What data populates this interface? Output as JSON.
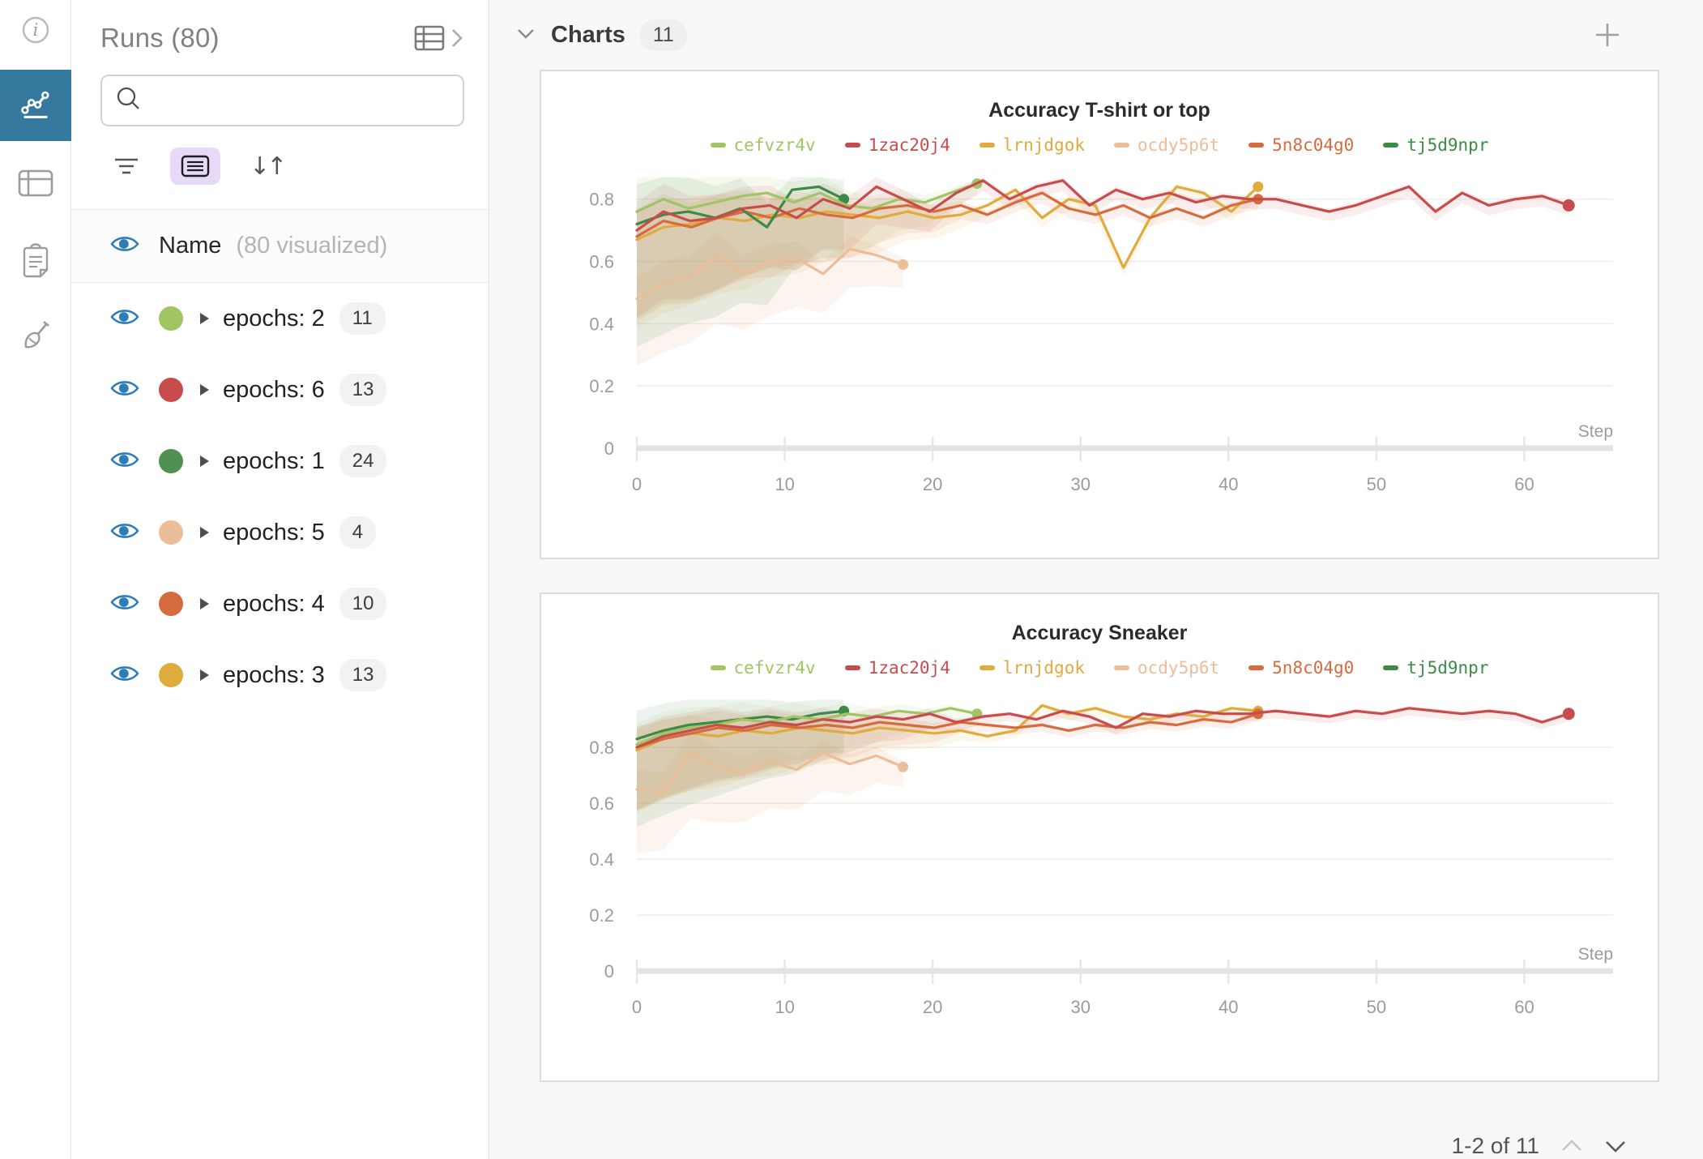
{
  "nav_rail": {
    "items": [
      {
        "name": "info",
        "active": false
      },
      {
        "name": "charts",
        "active": true
      },
      {
        "name": "table",
        "active": false
      },
      {
        "name": "notes",
        "active": false
      },
      {
        "name": "sweep",
        "active": false
      }
    ]
  },
  "runs_panel": {
    "title": "Runs (80)",
    "search": {
      "placeholder": "",
      "value": ""
    },
    "name_row": {
      "label": "Name",
      "sublabel": "(80 visualized)"
    },
    "rows": [
      {
        "label": "epochs: 2",
        "count": "11",
        "color": "#a0c562"
      },
      {
        "label": "epochs: 6",
        "count": "13",
        "color": "#c94c4c"
      },
      {
        "label": "epochs: 1",
        "count": "24",
        "color": "#4f9153"
      },
      {
        "label": "epochs: 5",
        "count": "4",
        "color": "#ecbd99"
      },
      {
        "label": "epochs: 4",
        "count": "10",
        "color": "#d56b3e"
      },
      {
        "label": "epochs: 3",
        "count": "13",
        "color": "#dfab3c"
      }
    ]
  },
  "charts_header": {
    "title": "Charts",
    "badge": "11"
  },
  "pagination": {
    "label": "1-2 of 11"
  },
  "chart_data": [
    {
      "type": "line",
      "title": "Accuracy T-shirt or top",
      "xlabel": "Step",
      "ylabel": "",
      "xlim": [
        0,
        66
      ],
      "ylim": [
        0,
        0.88
      ],
      "xticks": [
        0,
        10,
        20,
        30,
        40,
        50,
        60
      ],
      "yticks": [
        0,
        0.2,
        0.4,
        0.6,
        0.8
      ],
      "grid": true,
      "legend_position": "top",
      "series": [
        {
          "name": "cefvzr4v",
          "color": "#a0c562",
          "band": 0.45,
          "x": [
            0,
            1.8,
            3.5,
            5.3,
            7.1,
            8.8,
            10.6,
            12.4,
            14.2,
            15.9,
            17.7,
            19.5,
            21.2,
            23
          ],
          "y": [
            0.76,
            0.8,
            0.77,
            0.79,
            0.81,
            0.82,
            0.79,
            0.82,
            0.78,
            0.77,
            0.8,
            0.79,
            0.82,
            0.85
          ]
        },
        {
          "name": "1zac20j4",
          "color": "#c94c4c",
          "band": 0.4,
          "x": [
            0,
            1.8,
            3.6,
            5.4,
            7.2,
            9,
            10.8,
            12.6,
            14.4,
            16.2,
            18,
            19.8,
            21.6,
            23.4,
            25.2,
            27,
            28.8,
            30.6,
            32.4,
            34.2,
            36,
            37.8,
            39.6,
            41.4,
            43.2,
            45,
            46.8,
            48.6,
            50.4,
            52.2,
            54,
            55.8,
            57.6,
            59.4,
            61.2,
            63
          ],
          "y": [
            0.7,
            0.76,
            0.73,
            0.74,
            0.77,
            0.78,
            0.74,
            0.8,
            0.77,
            0.84,
            0.8,
            0.76,
            0.82,
            0.86,
            0.8,
            0.84,
            0.86,
            0.78,
            0.83,
            0.8,
            0.82,
            0.79,
            0.81,
            0.8,
            0.8,
            0.78,
            0.76,
            0.78,
            0.81,
            0.84,
            0.76,
            0.82,
            0.78,
            0.8,
            0.81,
            0.78
          ]
        },
        {
          "name": "lrnjdgok",
          "color": "#dfab3c",
          "band": 0.42,
          "x": [
            0,
            1.8,
            3.7,
            5.5,
            7.3,
            9.1,
            11,
            12.8,
            14.6,
            16.4,
            18.3,
            20.1,
            21.9,
            23.7,
            25.6,
            27.4,
            29.2,
            31,
            32.9,
            34.7,
            36.5,
            38.3,
            40.2,
            42
          ],
          "y": [
            0.67,
            0.71,
            0.72,
            0.74,
            0.73,
            0.75,
            0.74,
            0.76,
            0.75,
            0.74,
            0.76,
            0.74,
            0.75,
            0.78,
            0.83,
            0.74,
            0.8,
            0.78,
            0.58,
            0.74,
            0.84,
            0.82,
            0.76,
            0.84
          ]
        },
        {
          "name": "ocdy5p6t",
          "color": "#ecbd99",
          "band": 0.45,
          "x": [
            0,
            1.8,
            3.6,
            5.4,
            7.2,
            9,
            10.8,
            12.6,
            14.4,
            16.2,
            18
          ],
          "y": [
            0.48,
            0.53,
            0.55,
            0.62,
            0.56,
            0.6,
            0.61,
            0.56,
            0.64,
            0.62,
            0.59
          ]
        },
        {
          "name": "5n8c04g0",
          "color": "#d56b3e",
          "band": 0.4,
          "x": [
            0,
            1.8,
            3.7,
            5.5,
            7.3,
            9.1,
            11,
            12.8,
            14.6,
            16.4,
            18.3,
            20.1,
            21.9,
            23.7,
            25.6,
            27.4,
            29.2,
            31,
            32.9,
            34.7,
            36.5,
            38.3,
            40.2,
            42
          ],
          "y": [
            0.68,
            0.73,
            0.71,
            0.74,
            0.76,
            0.74,
            0.77,
            0.75,
            0.74,
            0.77,
            0.78,
            0.76,
            0.78,
            0.75,
            0.79,
            0.82,
            0.77,
            0.75,
            0.78,
            0.74,
            0.77,
            0.74,
            0.78,
            0.8
          ]
        },
        {
          "name": "tj5d9npr",
          "color": "#3c8a47",
          "band": 0.55,
          "x": [
            0,
            1.8,
            3.5,
            5.3,
            7,
            8.8,
            10.5,
            12.3,
            14
          ],
          "y": [
            0.72,
            0.75,
            0.76,
            0.74,
            0.77,
            0.71,
            0.83,
            0.84,
            0.8
          ]
        }
      ]
    },
    {
      "type": "line",
      "title": "Accuracy Sneaker",
      "xlabel": "Step",
      "ylabel": "",
      "xlim": [
        0,
        66
      ],
      "ylim": [
        0,
        0.98
      ],
      "xticks": [
        0,
        10,
        20,
        30,
        40,
        50,
        60
      ],
      "yticks": [
        0,
        0.2,
        0.4,
        0.6,
        0.8
      ],
      "grid": true,
      "legend_position": "top",
      "series": [
        {
          "name": "cefvzr4v",
          "color": "#a0c562",
          "band": 0.3,
          "x": [
            0,
            1.8,
            3.5,
            5.3,
            7.1,
            8.8,
            10.6,
            12.4,
            14.2,
            15.9,
            17.7,
            19.5,
            21.2,
            23
          ],
          "y": [
            0.81,
            0.85,
            0.87,
            0.88,
            0.9,
            0.89,
            0.91,
            0.9,
            0.92,
            0.91,
            0.93,
            0.92,
            0.94,
            0.92
          ]
        },
        {
          "name": "1zac20j4",
          "color": "#c94c4c",
          "band": 0.28,
          "x": [
            0,
            1.8,
            3.6,
            5.4,
            7.2,
            9,
            10.8,
            12.6,
            14.4,
            16.2,
            18,
            19.8,
            21.6,
            23.4,
            25.2,
            27,
            28.8,
            30.6,
            32.4,
            34.2,
            36,
            37.8,
            39.6,
            41.4,
            43.2,
            45,
            46.8,
            48.6,
            50.4,
            52.2,
            54,
            55.8,
            57.6,
            59.4,
            61.2,
            63
          ],
          "y": [
            0.8,
            0.84,
            0.86,
            0.88,
            0.87,
            0.89,
            0.88,
            0.9,
            0.89,
            0.91,
            0.9,
            0.92,
            0.89,
            0.91,
            0.92,
            0.9,
            0.93,
            0.91,
            0.87,
            0.92,
            0.91,
            0.93,
            0.92,
            0.92,
            0.93,
            0.92,
            0.91,
            0.93,
            0.92,
            0.94,
            0.93,
            0.92,
            0.93,
            0.92,
            0.89,
            0.92
          ]
        },
        {
          "name": "lrnjdgok",
          "color": "#dfab3c",
          "band": 0.28,
          "x": [
            0,
            1.8,
            3.7,
            5.5,
            7.3,
            9.1,
            11,
            12.8,
            14.6,
            16.4,
            18.3,
            20.1,
            21.9,
            23.7,
            25.6,
            27.4,
            29.2,
            31,
            32.9,
            34.7,
            36.5,
            38.3,
            40.2,
            42
          ],
          "y": [
            0.79,
            0.83,
            0.85,
            0.84,
            0.86,
            0.85,
            0.87,
            0.86,
            0.85,
            0.87,
            0.86,
            0.85,
            0.86,
            0.84,
            0.86,
            0.95,
            0.92,
            0.94,
            0.91,
            0.9,
            0.92,
            0.91,
            0.94,
            0.93
          ]
        },
        {
          "name": "ocdy5p6t",
          "color": "#ecbd99",
          "band": 0.35,
          "x": [
            0,
            1.8,
            3.6,
            5.4,
            7.2,
            9,
            10.8,
            12.6,
            14.4,
            16.2,
            18
          ],
          "y": [
            0.65,
            0.64,
            0.78,
            0.73,
            0.71,
            0.75,
            0.72,
            0.78,
            0.74,
            0.77,
            0.73
          ]
        },
        {
          "name": "5n8c04g0",
          "color": "#d56b3e",
          "band": 0.28,
          "x": [
            0,
            1.8,
            3.7,
            5.5,
            7.3,
            9.1,
            11,
            12.8,
            14.6,
            16.4,
            18.3,
            20.1,
            21.9,
            23.7,
            25.6,
            27.4,
            29.2,
            31,
            32.9,
            34.7,
            36.5,
            38.3,
            40.2,
            42
          ],
          "y": [
            0.8,
            0.83,
            0.85,
            0.87,
            0.86,
            0.88,
            0.87,
            0.88,
            0.87,
            0.89,
            0.88,
            0.87,
            0.89,
            0.88,
            0.87,
            0.88,
            0.86,
            0.88,
            0.87,
            0.89,
            0.88,
            0.9,
            0.89,
            0.92
          ]
        },
        {
          "name": "tj5d9npr",
          "color": "#3c8a47",
          "band": 0.38,
          "x": [
            0,
            1.8,
            3.5,
            5.3,
            7,
            8.8,
            10.5,
            12.3,
            14
          ],
          "y": [
            0.83,
            0.86,
            0.88,
            0.89,
            0.9,
            0.91,
            0.9,
            0.92,
            0.93
          ]
        }
      ]
    }
  ],
  "colors": {
    "nav_active_bg": "#35799f",
    "eye_blue": "#2e7cb8",
    "list_btn_bg": "#e7daf8",
    "axis_gray": "#e3e3e3",
    "tick_label": "#9b9b9b",
    "card_border": "#dcdcdc",
    "main_bg": "#f8f8f8"
  }
}
